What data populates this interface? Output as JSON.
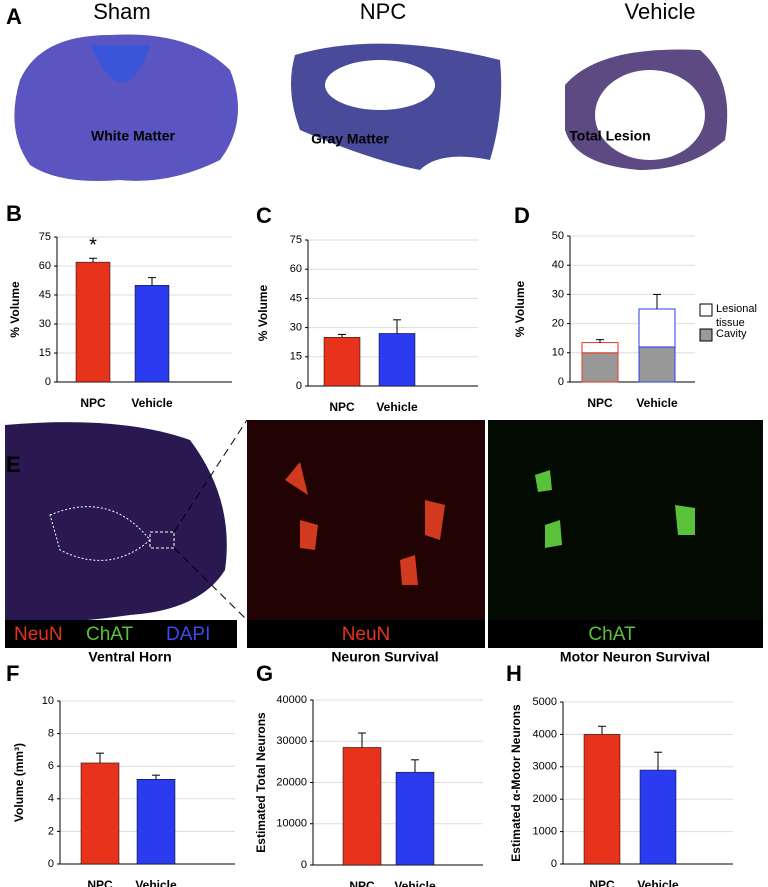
{
  "figure": {
    "panel_a": {
      "label": "A",
      "titles": [
        "Sham",
        "NPC",
        "Vehicle"
      ]
    },
    "panel_e": {
      "label": "E",
      "stains": [
        "NeuN",
        "ChAT",
        "DAPI"
      ],
      "channels": [
        "NeuN",
        "ChAT"
      ]
    }
  },
  "chart_data": [
    {
      "type": "bar",
      "label": "B",
      "title": "White Matter",
      "ylabel": "% Volume",
      "categories": [
        "NPC",
        "Vehicle"
      ],
      "values": [
        62,
        50
      ],
      "errors": [
        2,
        4
      ],
      "colors": [
        "#e8331c",
        "#2b3cf0"
      ],
      "ylim": [
        0,
        75
      ],
      "yticks": [
        0,
        15,
        30,
        45,
        60,
        75
      ],
      "grid": true,
      "annotation": "*"
    },
    {
      "type": "bar",
      "label": "C",
      "title": "Gray Matter",
      "ylabel": "% Volume",
      "categories": [
        "NPC",
        "Vehicle"
      ],
      "values": [
        25,
        27
      ],
      "errors": [
        1.5,
        7
      ],
      "colors": [
        "#e8331c",
        "#2b3cf0"
      ],
      "ylim": [
        0,
        75
      ],
      "yticks": [
        0,
        15,
        30,
        45,
        60,
        75
      ],
      "grid": true
    },
    {
      "type": "stacked_bar",
      "label": "D",
      "title": "Total Lesion",
      "ylabel": "% Volume",
      "categories": [
        "NPC",
        "Vehicle"
      ],
      "edge_colors": [
        "#e8331c",
        "#2b3cf0"
      ],
      "series": [
        {
          "name": "Cavity",
          "color": "#999999",
          "values": [
            10,
            12
          ],
          "errors": [
            2.5,
            2
          ]
        },
        {
          "name": "Lesional tissue",
          "color": "#ffffff",
          "values": [
            3.5,
            13
          ],
          "errors": [
            1,
            5
          ]
        }
      ],
      "ylim": [
        0,
        50
      ],
      "yticks": [
        0,
        10,
        20,
        30,
        40,
        50
      ],
      "grid": true
    },
    {
      "type": "bar",
      "label": "F",
      "title": "Ventral Horn",
      "ylabel": "Volume (mm³)",
      "categories": [
        "NPC",
        "Vehicle"
      ],
      "values": [
        6.2,
        5.2
      ],
      "errors": [
        0.6,
        0.25
      ],
      "colors": [
        "#e8331c",
        "#2b3cf0"
      ],
      "ylim": [
        0,
        10
      ],
      "yticks": [
        0,
        2,
        4,
        6,
        8,
        10
      ],
      "grid": true
    },
    {
      "type": "bar",
      "label": "G",
      "title": "Neuron Survival",
      "ylabel": "Estimated Total Neurons",
      "categories": [
        "NPC",
        "Vehicle"
      ],
      "values": [
        28500,
        22500
      ],
      "errors": [
        3500,
        3000
      ],
      "colors": [
        "#e8331c",
        "#2b3cf0"
      ],
      "ylim": [
        0,
        40000
      ],
      "yticks": [
        0,
        10000,
        20000,
        30000,
        40000
      ],
      "grid": true
    },
    {
      "type": "bar",
      "label": "H",
      "title": "Motor Neuron Survival",
      "ylabel": "Estimated α-Motor Neurons",
      "categories": [
        "NPC",
        "Vehicle"
      ],
      "values": [
        4000,
        2900
      ],
      "errors": [
        250,
        550
      ],
      "colors": [
        "#e8331c",
        "#2b3cf0"
      ],
      "ylim": [
        0,
        5000
      ],
      "yticks": [
        0,
        1000,
        2000,
        3000,
        4000,
        5000
      ],
      "grid": true
    }
  ]
}
